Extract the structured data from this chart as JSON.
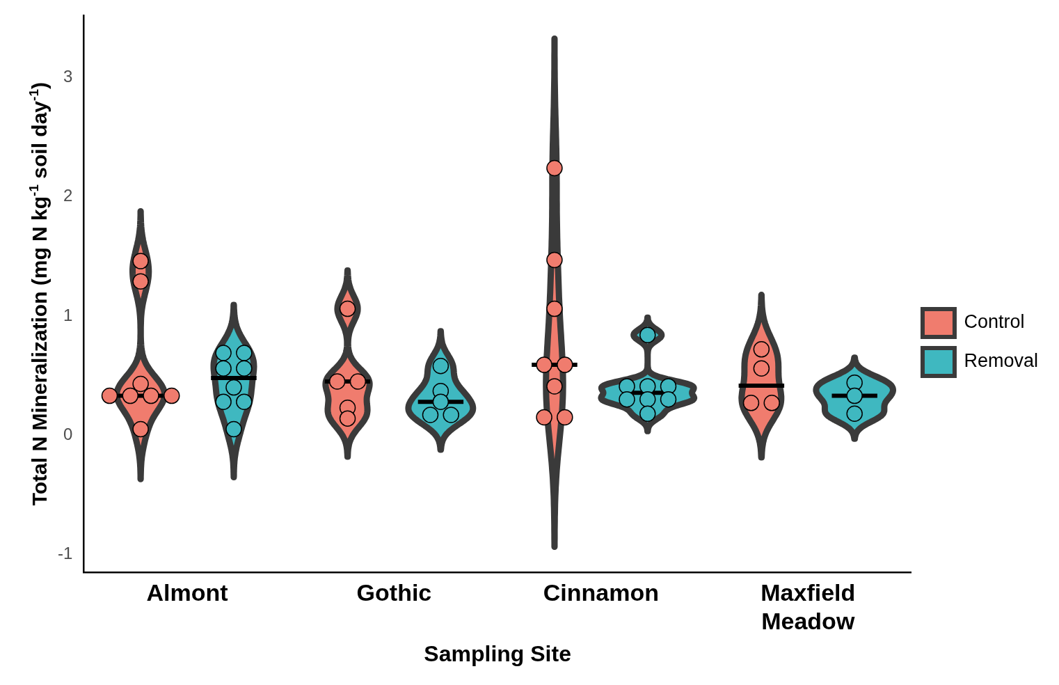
{
  "chart_data": {
    "type": "scatter",
    "xlabel": "Sampling Site",
    "ylabel": "Total N Mineralization (mg N kg$^{-1}$ soil day$^{-1}$)",
    "categories": [
      "Almont",
      "Gothic",
      "Cinnamon",
      "Maxfield Meadow"
    ],
    "series": [
      {
        "name": "Control",
        "color": "#f07c6e",
        "x": [
          "Almont",
          "Almont",
          "Almont",
          "Almont",
          "Almont",
          "Almont",
          "Almont",
          "Almont",
          "Gothic",
          "Gothic",
          "Gothic",
          "Gothic",
          "Gothic",
          "Cinnamon",
          "Cinnamon",
          "Cinnamon",
          "Cinnamon",
          "Cinnamon",
          "Cinnamon",
          "Cinnamon",
          "Cinnamon",
          "Maxfield Meadow",
          "Maxfield Meadow",
          "Maxfield Meadow",
          "Maxfield Meadow"
        ],
        "values": [
          1.46,
          1.29,
          0.43,
          0.33,
          0.33,
          0.33,
          0.33,
          0.05,
          1.06,
          0.45,
          0.45,
          0.23,
          0.14,
          2.24,
          1.47,
          1.06,
          0.59,
          0.59,
          0.41,
          0.15,
          0.15,
          0.72,
          0.56,
          0.27,
          0.27
        ]
      },
      {
        "name": "Removal",
        "color": "#3fb8c0",
        "x": [
          "Almont",
          "Almont",
          "Almont",
          "Almont",
          "Almont",
          "Almont",
          "Almont",
          "Almont",
          "Gothic",
          "Gothic",
          "Gothic",
          "Gothic",
          "Gothic",
          "Cinnamon",
          "Cinnamon",
          "Cinnamon",
          "Cinnamon",
          "Cinnamon",
          "Cinnamon",
          "Cinnamon",
          "Cinnamon",
          "Maxfield Meadow",
          "Maxfield Meadow",
          "Maxfield Meadow"
        ],
        "values": [
          0.69,
          0.69,
          0.56,
          0.56,
          0.4,
          0.28,
          0.28,
          0.05,
          0.58,
          0.37,
          0.28,
          0.17,
          0.17,
          0.84,
          0.41,
          0.41,
          0.41,
          0.3,
          0.3,
          0.3,
          0.18,
          0.44,
          0.33,
          0.18
        ]
      }
    ],
    "ylim": [
      -1.15,
      3.52
    ],
    "yticks": [
      -1,
      0,
      1,
      2,
      3
    ],
    "legend": "right",
    "marker": "circle"
  }
}
